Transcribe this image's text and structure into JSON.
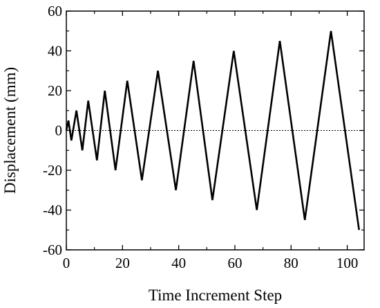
{
  "chart_data": {
    "type": "line",
    "title": "",
    "xlabel": "Time Increment Step",
    "ylabel": "Displacement (mm)",
    "xlim": [
      0,
      106
    ],
    "ylim": [
      -60,
      60
    ],
    "x_ticks": [
      0,
      20,
      40,
      60,
      80,
      100
    ],
    "y_ticks": [
      -60,
      -40,
      -20,
      0,
      20,
      40,
      60
    ],
    "grid": false,
    "legend": "none",
    "reference_line": {
      "y": 0,
      "style": "dotted"
    },
    "series": [
      {
        "color": "#000000",
        "x": [
          0,
          0.75,
          1.8,
          3.6,
          5.7,
          7.8,
          10.9,
          13.7,
          17.5,
          21.7,
          26.9,
          32.6,
          39.0,
          45.3,
          52.0,
          59.6,
          67.8,
          76.0,
          84.9,
          94.2,
          104.2
        ],
        "y": [
          0,
          5,
          -5,
          10,
          -10,
          15,
          -15,
          20,
          -20,
          25,
          -25,
          30,
          -30,
          35,
          -35,
          40,
          -40,
          45,
          -45,
          50,
          -50
        ]
      }
    ]
  }
}
